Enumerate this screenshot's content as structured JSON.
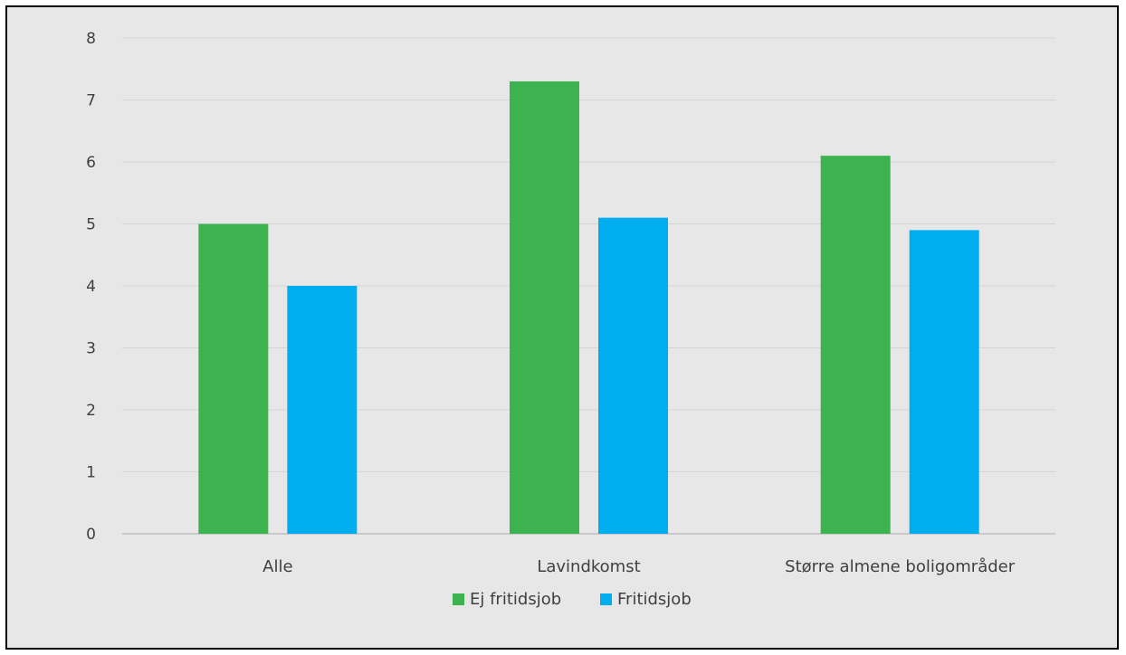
{
  "chart_data": {
    "type": "bar",
    "title": "",
    "xlabel": "",
    "ylabel": "",
    "categories": [
      "Alle",
      "Lavindkomst",
      "Større almene boligområder"
    ],
    "series": [
      {
        "name": "Ej fritidsjob",
        "values": [
          5.0,
          7.3,
          6.1
        ],
        "color": "#3cb34e"
      },
      {
        "name": "Fritidsjob",
        "values": [
          4.0,
          5.1,
          4.9
        ],
        "color": "#00adef"
      }
    ],
    "ylim": [
      0,
      8
    ],
    "yticks": [
      "0",
      "1",
      "2",
      "3",
      "4",
      "5",
      "6",
      "7",
      "8"
    ],
    "grid": true,
    "legend": "bottom"
  }
}
